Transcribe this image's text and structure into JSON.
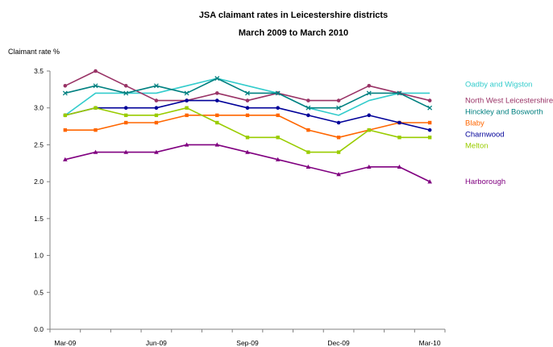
{
  "chart_data": {
    "type": "line",
    "title": "JSA claimant rates in Leicestershire districts",
    "subtitle": "March 2009 to March 2010",
    "ylabel": "Claimant rate %",
    "xlabel": "",
    "ylim": [
      0,
      3.5
    ],
    "yticks": [
      "0.0",
      "0.5",
      "1.0",
      "1.5",
      "2.0",
      "2.5",
      "3.0",
      "3.5"
    ],
    "x": [
      "Mar-09",
      "Apr-09",
      "May-09",
      "Jun-09",
      "Jul-09",
      "Aug-09",
      "Sep-09",
      "Oct-09",
      "Nov-09",
      "Dec-09",
      "Jan-10",
      "Feb-10",
      "Mar-10"
    ],
    "xtick_labels": [
      "Mar-09",
      "Jun-09",
      "Sep-09",
      "Dec-09",
      "Mar-10"
    ],
    "legend": "right-end-labels",
    "grid": false,
    "series": [
      {
        "name": "Oadby and Wigston",
        "color": "#33cccc",
        "marker": "none",
        "values": [
          2.9,
          3.2,
          3.2,
          3.2,
          3.3,
          3.4,
          3.3,
          3.2,
          3.0,
          2.9,
          3.1,
          3.2,
          3.2
        ]
      },
      {
        "name": "North West Leicestershire",
        "color": "#993366",
        "marker": "circle",
        "values": [
          3.3,
          3.5,
          3.3,
          3.1,
          3.1,
          3.2,
          3.1,
          3.2,
          3.1,
          3.1,
          3.3,
          3.2,
          3.1
        ]
      },
      {
        "name": "Hinckley and Bosworth",
        "color": "#008080",
        "marker": "x",
        "values": [
          3.2,
          3.3,
          3.2,
          3.3,
          3.2,
          3.4,
          3.2,
          3.2,
          3.0,
          3.0,
          3.2,
          3.2,
          3.0
        ]
      },
      {
        "name": "Blaby",
        "color": "#ff6600",
        "marker": "square",
        "values": [
          2.7,
          2.7,
          2.8,
          2.8,
          2.9,
          2.9,
          2.9,
          2.9,
          2.7,
          2.6,
          2.7,
          2.8,
          2.8
        ]
      },
      {
        "name": "Charnwood",
        "color": "#000099",
        "marker": "circle",
        "values": [
          2.9,
          3.0,
          3.0,
          3.0,
          3.1,
          3.1,
          3.0,
          3.0,
          2.9,
          2.8,
          2.9,
          2.8,
          2.7
        ]
      },
      {
        "name": "Melton",
        "color": "#99cc00",
        "marker": "square",
        "values": [
          2.9,
          3.0,
          2.9,
          2.9,
          3.0,
          2.8,
          2.6,
          2.6,
          2.4,
          2.4,
          2.7,
          2.6,
          2.6
        ]
      },
      {
        "name": "Harborough",
        "color": "#800080",
        "marker": "triangle",
        "values": [
          2.3,
          2.4,
          2.4,
          2.4,
          2.5,
          2.5,
          2.4,
          2.3,
          2.2,
          2.1,
          2.2,
          2.2,
          2.0
        ]
      }
    ]
  }
}
